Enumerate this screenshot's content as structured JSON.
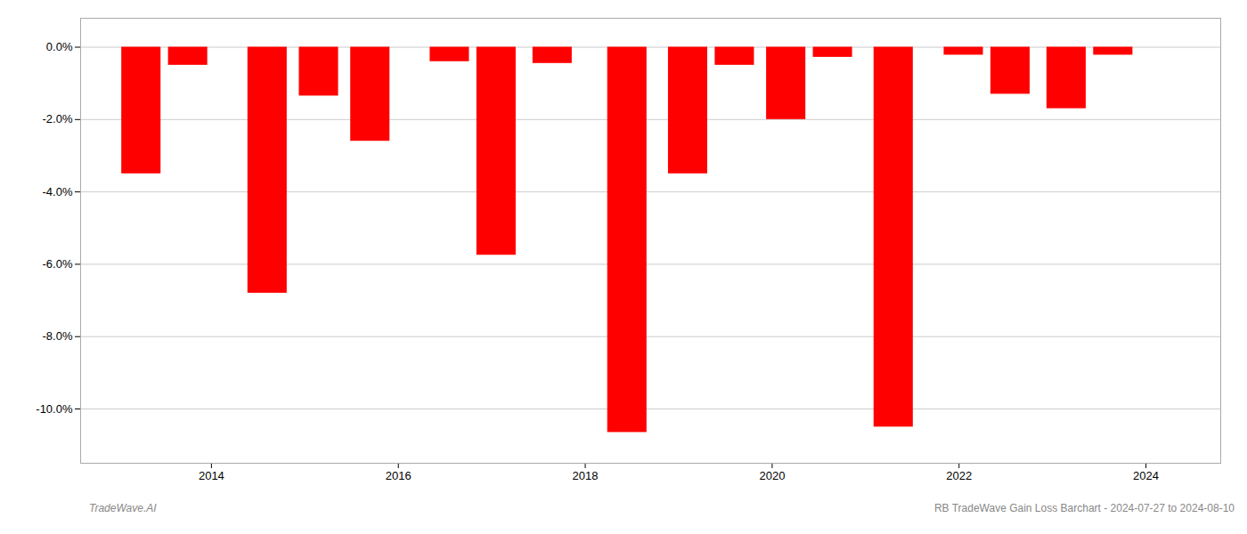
{
  "chart_data": {
    "type": "bar",
    "x": [
      2013.25,
      2013.75,
      2014.6,
      2015.15,
      2015.7,
      2016.55,
      2017.05,
      2017.65,
      2018.45,
      2019.1,
      2019.6,
      2020.15,
      2020.65,
      2021.3,
      2022.05,
      2022.55,
      2023.15,
      2023.65
    ],
    "values": [
      -3.5,
      -0.5,
      -6.8,
      -1.35,
      -2.6,
      -0.4,
      -5.75,
      -0.45,
      -10.65,
      -3.5,
      -0.5,
      -2.0,
      -0.28,
      -10.5,
      -0.22,
      -1.3,
      -1.7,
      -0.22
    ],
    "color": "#ff0000",
    "xlim": [
      2012.6,
      2024.8
    ],
    "xticks": [
      2014,
      2016,
      2018,
      2020,
      2022,
      2024
    ],
    "ylim": [
      -11.5,
      0.8
    ],
    "yticks": [
      {
        "value": 0.0,
        "label": "0.0%"
      },
      {
        "value": -2.0,
        "label": "-2.0%"
      },
      {
        "value": -4.0,
        "label": "-4.0%"
      },
      {
        "value": -6.0,
        "label": "-6.0%"
      },
      {
        "value": -8.0,
        "label": "-8.0%"
      },
      {
        "value": -10.0,
        "label": "-10.0%"
      }
    ],
    "grid": true,
    "annotations": [
      "TradeWave.AI",
      "RB TradeWave Gain Loss Barchart - 2024-07-27 to 2024-08-10"
    ]
  }
}
